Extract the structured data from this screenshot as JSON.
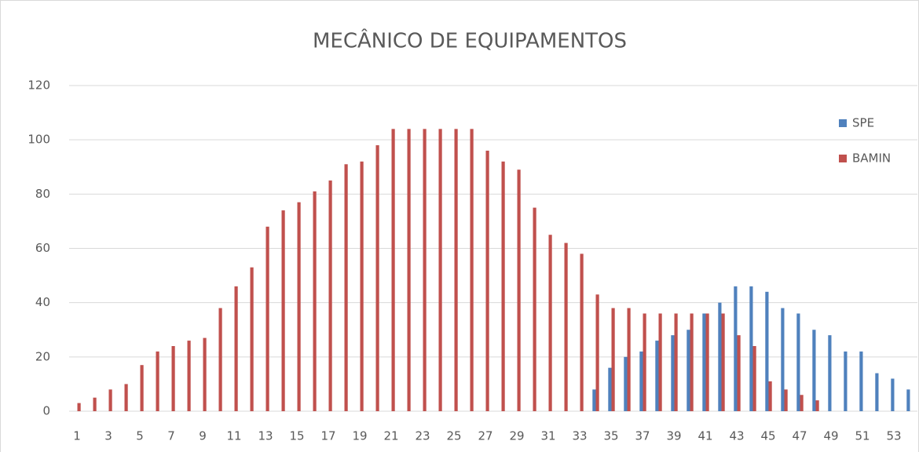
{
  "chart_data": {
    "type": "bar",
    "title": "MECÂNICO DE EQUIPAMENTOS",
    "categories": [
      1,
      null,
      3,
      null,
      5,
      null,
      7,
      null,
      9,
      null,
      11,
      null,
      13,
      null,
      15,
      null,
      17,
      null,
      19,
      null,
      21,
      null,
      23,
      null,
      25,
      null,
      27,
      null,
      29,
      null,
      31,
      null,
      33,
      null,
      35,
      null,
      37,
      null,
      39,
      null,
      41,
      null,
      43,
      null,
      45,
      null,
      47,
      null,
      49,
      null,
      51,
      null,
      53,
      null
    ],
    "series": [
      {
        "name": "SPE",
        "color": "#4f81bd",
        "values": [
          0,
          0,
          0,
          0,
          0,
          0,
          0,
          0,
          0,
          0,
          0,
          0,
          0,
          0,
          0,
          0,
          0,
          0,
          0,
          0,
          0,
          0,
          0,
          0,
          0,
          0,
          0,
          0,
          0,
          0,
          0,
          0,
          0,
          8,
          16,
          20,
          22,
          26,
          28,
          30,
          36,
          40,
          46,
          46,
          44,
          38,
          36,
          30,
          28,
          22,
          22,
          14,
          12,
          8
        ]
      },
      {
        "name": "BAMIN",
        "color": "#c0504d",
        "values": [
          3,
          5,
          8,
          10,
          17,
          22,
          24,
          26,
          27,
          38,
          46,
          53,
          68,
          74,
          77,
          81,
          85,
          91,
          92,
          98,
          104,
          104,
          104,
          104,
          104,
          104,
          96,
          92,
          89,
          75,
          65,
          62,
          58,
          43,
          38,
          38,
          36,
          36,
          36,
          36,
          36,
          36,
          28,
          24,
          11,
          8,
          6,
          4,
          0,
          0,
          0,
          0,
          0,
          0
        ]
      }
    ],
    "ylim": [
      0,
      120
    ],
    "yticks": [
      0,
      20,
      40,
      60,
      80,
      100,
      120
    ],
    "grid": true,
    "legend": "right"
  }
}
